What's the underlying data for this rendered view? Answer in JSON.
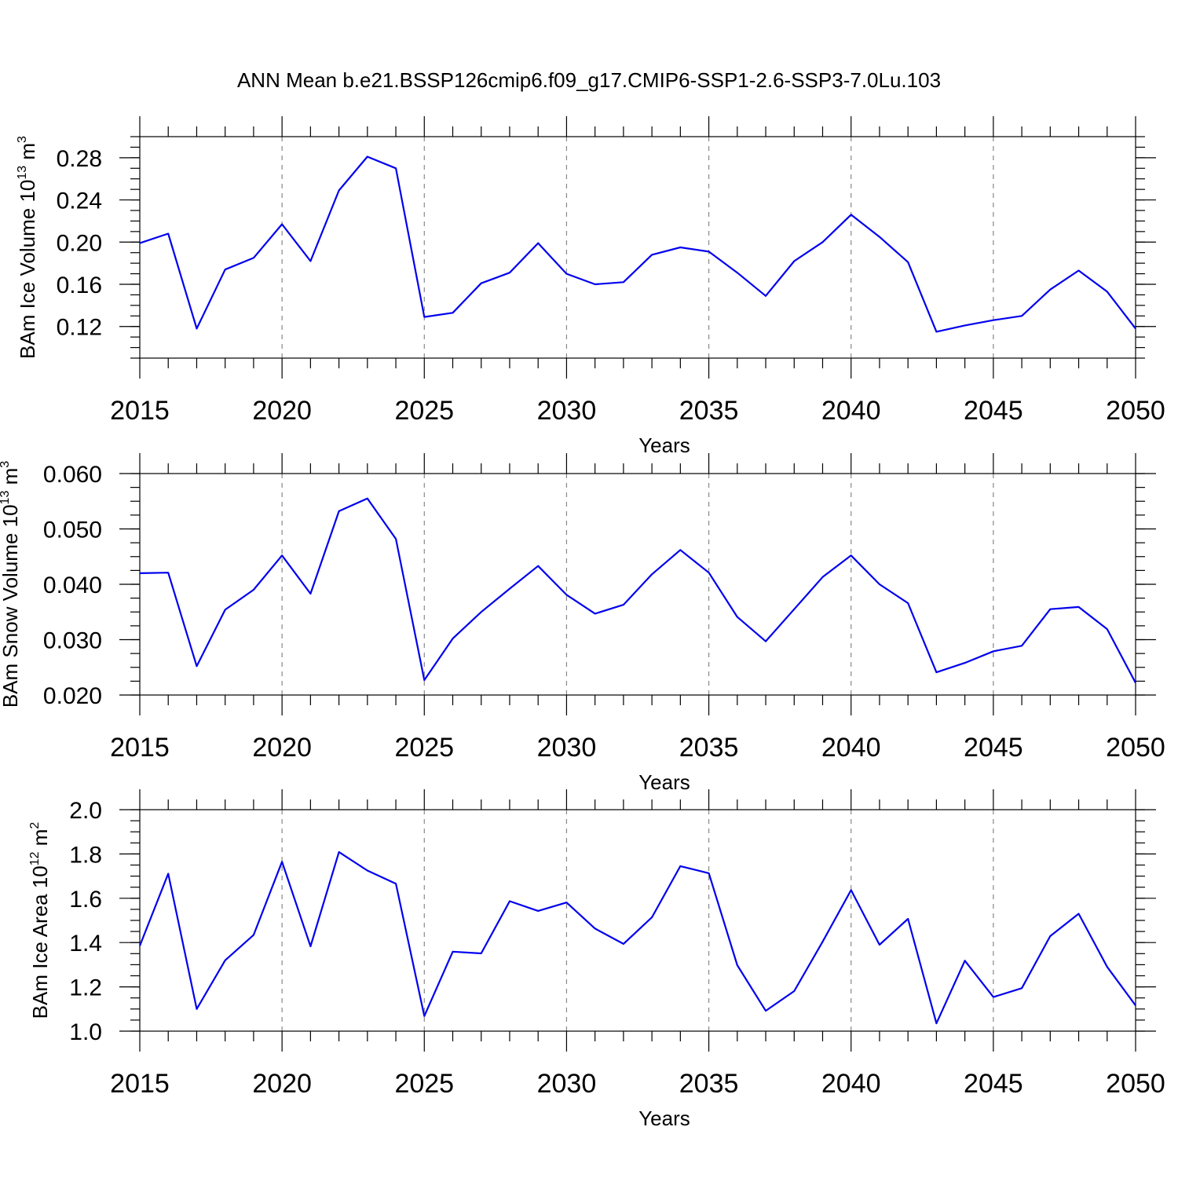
{
  "title": "ANN Mean b.e21.BSSP126cmip6.f09_g17.CMIP6-SSP1-2.6-SSP3-7.0Lu.103",
  "line_color": "#0000ee",
  "chart_data": [
    {
      "type": "line",
      "ylabel": "BAm Ice Volume 10",
      "ylabel_exp": "13",
      "ylabel_unit": " m",
      "ylabel_unit_exp": "3",
      "xlabel": "Years",
      "xlim": [
        2015,
        2050
      ],
      "ylim": [
        0.09,
        0.3
      ],
      "x_ticks": [
        2015,
        2020,
        2025,
        2030,
        2035,
        2040,
        2045,
        2050
      ],
      "y_ticks": [
        "0.12",
        "0.16",
        "0.20",
        "0.24",
        "0.28"
      ],
      "grid": "vertical dashed",
      "x": [
        2015,
        2016,
        2017,
        2018,
        2019,
        2020,
        2021,
        2022,
        2023,
        2024,
        2025,
        2026,
        2027,
        2028,
        2029,
        2030,
        2031,
        2032,
        2033,
        2034,
        2035,
        2036,
        2037,
        2038,
        2039,
        2040,
        2041,
        2042,
        2043,
        2044,
        2045,
        2046,
        2047,
        2048,
        2049,
        2050
      ],
      "values": [
        0.199,
        0.208,
        0.118,
        0.174,
        0.185,
        0.217,
        0.182,
        0.249,
        0.281,
        0.27,
        0.129,
        0.133,
        0.161,
        0.171,
        0.199,
        0.17,
        0.16,
        0.162,
        0.188,
        0.195,
        0.191,
        0.171,
        0.149,
        0.182,
        0.2,
        0.226,
        0.205,
        0.181,
        0.115,
        0.121,
        0.126,
        0.13,
        0.155,
        0.173,
        0.153,
        0.118
      ]
    },
    {
      "type": "line",
      "ylabel": "BAm Snow Volume 10",
      "ylabel_exp": "13",
      "ylabel_unit": " m",
      "ylabel_unit_exp": "3",
      "xlabel": "Years",
      "xlim": [
        2015,
        2050
      ],
      "ylim": [
        0.02,
        0.06
      ],
      "x_ticks": [
        2015,
        2020,
        2025,
        2030,
        2035,
        2040,
        2045,
        2050
      ],
      "y_ticks": [
        "0.020",
        "0.030",
        "0.040",
        "0.050",
        "0.060"
      ],
      "grid": "vertical dashed",
      "x": [
        2015,
        2016,
        2017,
        2018,
        2019,
        2020,
        2021,
        2022,
        2023,
        2024,
        2025,
        2026,
        2027,
        2028,
        2029,
        2030,
        2031,
        2032,
        2033,
        2034,
        2035,
        2036,
        2037,
        2038,
        2039,
        2040,
        2041,
        2042,
        2043,
        2044,
        2045,
        2046,
        2047,
        2048,
        2049,
        2050
      ],
      "values": [
        0.042,
        0.0421,
        0.0252,
        0.0354,
        0.039,
        0.0452,
        0.0383,
        0.0532,
        0.0555,
        0.0482,
        0.0227,
        0.0302,
        0.035,
        0.0392,
        0.0433,
        0.0381,
        0.0347,
        0.0363,
        0.0418,
        0.0462,
        0.0421,
        0.0341,
        0.0297,
        0.0355,
        0.0413,
        0.0452,
        0.04,
        0.0366,
        0.0241,
        0.0258,
        0.0279,
        0.0289,
        0.0355,
        0.0359,
        0.0319,
        0.0222
      ]
    },
    {
      "type": "line",
      "ylabel": "BAm Ice Area 10",
      "ylabel_exp": "12",
      "ylabel_unit": " m",
      "ylabel_unit_exp": "2",
      "xlabel": "Years",
      "xlim": [
        2015,
        2050
      ],
      "ylim": [
        1.0,
        2.0
      ],
      "x_ticks": [
        2015,
        2020,
        2025,
        2030,
        2035,
        2040,
        2045,
        2050
      ],
      "y_ticks": [
        "1.0",
        "1.2",
        "1.4",
        "1.6",
        "1.8",
        "2.0"
      ],
      "grid": "vertical dashed",
      "x": [
        2015,
        2016,
        2017,
        2018,
        2019,
        2020,
        2021,
        2022,
        2023,
        2024,
        2025,
        2026,
        2027,
        2028,
        2029,
        2030,
        2031,
        2032,
        2033,
        2034,
        2035,
        2036,
        2037,
        2038,
        2039,
        2040,
        2041,
        2042,
        2043,
        2044,
        2045,
        2046,
        2047,
        2048,
        2049,
        2050
      ],
      "values": [
        1.385,
        1.711,
        1.1,
        1.32,
        1.434,
        1.765,
        1.383,
        1.809,
        1.725,
        1.666,
        1.068,
        1.359,
        1.351,
        1.587,
        1.543,
        1.581,
        1.463,
        1.394,
        1.514,
        1.745,
        1.713,
        1.298,
        1.092,
        1.181,
        1.404,
        1.637,
        1.39,
        1.507,
        1.035,
        1.318,
        1.154,
        1.194,
        1.429,
        1.53,
        1.29,
        1.116
      ]
    }
  ]
}
